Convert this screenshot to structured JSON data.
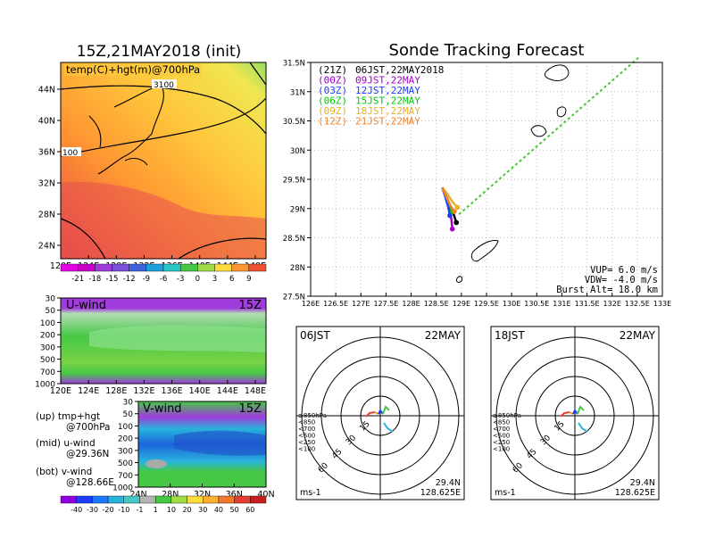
{
  "left": {
    "title": "15Z,21MAY2018 (init)",
    "map_label": "temp(C)+hgt(m)@700hPa",
    "contour_labels": [
      "3100",
      "100"
    ],
    "lat_ticks": [
      "44N",
      "40N",
      "36N",
      "32N",
      "28N",
      "24N"
    ],
    "lon_ticks": [
      "120E",
      "124E",
      "128E",
      "132E",
      "136E",
      "140E",
      "144E",
      "148E"
    ],
    "temp_colorbar": [
      "-21",
      "-18",
      "-15",
      "-12",
      "-9",
      "-6",
      "-3",
      "0",
      "3",
      "6",
      "9"
    ],
    "u_panel": {
      "label": "U-wind",
      "time": "15Z",
      "p_ticks": [
        "30",
        "50",
        "100",
        "200",
        "300",
        "500",
        "700",
        "1000"
      ],
      "x_ticks": [
        "120E",
        "124E",
        "128E",
        "132E",
        "136E",
        "140E",
        "144E",
        "148E"
      ]
    },
    "v_panel": {
      "label": "V-wind",
      "time": "15Z",
      "p_ticks": [
        "30",
        "50",
        "100",
        "200",
        "300",
        "500",
        "700",
        "1000"
      ],
      "x_ticks": [
        "24N",
        "28N",
        "32N",
        "36N",
        "40N"
      ]
    },
    "notes": [
      {
        "a": "(up) tmp+hgt",
        "b": "@700hPa"
      },
      {
        "a": "(mid) u-wind",
        "b": "@29.36N"
      },
      {
        "a": "(bot) v-wind",
        "b": "@128.66E"
      }
    ],
    "wind_colorbar": [
      "-40",
      "-30",
      "-20",
      "-10",
      "-1",
      "1",
      "10",
      "20",
      "30",
      "40",
      "50",
      "60"
    ]
  },
  "right": {
    "title": "Sonde Tracking Forecast",
    "legend": [
      {
        "tag": "(21Z)",
        "text": "06JST,22MAY2018",
        "color": "#000000"
      },
      {
        "tag": "(00Z)",
        "text": "09JST,22MAY",
        "color": "#a000c8"
      },
      {
        "tag": "(03Z)",
        "text": "12JST,22MAY",
        "color": "#1e3cff"
      },
      {
        "tag": "(06Z)",
        "text": "15JST,22MAY",
        "color": "#00c800"
      },
      {
        "tag": "(09Z)",
        "text": "18JST,22MAY",
        "color": "#e6af2d"
      },
      {
        "tag": "(12Z)",
        "text": "21JST,22MAY",
        "color": "#f08228"
      }
    ],
    "lat_ticks": [
      "31.5N",
      "31N",
      "30.5N",
      "30N",
      "29.5N",
      "29N",
      "28.5N",
      "28N",
      "27.5N"
    ],
    "lon_ticks": [
      "126E",
      "126.5E",
      "127E",
      "127.5E",
      "128E",
      "128.5E",
      "129E",
      "129.5E",
      "130E",
      "130.5E",
      "131E",
      "131.5E",
      "132E",
      "132.5E",
      "133E"
    ],
    "vup": "VUP=  6.0 m/s",
    "vdw": "VDW= -4.0 m/s",
    "burst": "Burst Alt= 18.0 km"
  },
  "hodographs": [
    {
      "time": "06JST",
      "date": "22MAY",
      "lat": "29.4N",
      "lon": "128.625E",
      "unit": "ms-1",
      "rings": [
        "15",
        "30",
        "45",
        "60"
      ],
      "levels": [
        "≥850hPa",
        "<850",
        "<700",
        "<500",
        "<250",
        "<100"
      ]
    },
    {
      "time": "18JST",
      "date": "22MAY",
      "lat": "29.4N",
      "lon": "128.625E",
      "unit": "ms-1",
      "rings": [
        "15",
        "30",
        "45",
        "60"
      ],
      "levels": [
        "≥850hPa",
        "<850",
        "<700",
        "<500",
        "<250",
        "<100"
      ]
    }
  ],
  "chart_data": [
    {
      "type": "line",
      "title": "Sonde Tracking Forecast",
      "xlim": [
        126,
        133
      ],
      "ylim": [
        27.5,
        31.5
      ],
      "series": [
        {
          "name": "(21Z) 06JST,22MAY2018",
          "color": "#000000",
          "x": [
            128.62,
            128.7,
            128.78,
            128.84,
            128.9
          ],
          "y": [
            29.36,
            29.2,
            29.05,
            28.92,
            28.76
          ]
        },
        {
          "name": "(00Z) 09JST,22MAY",
          "color": "#a000c8",
          "x": [
            128.62,
            128.69,
            128.75,
            128.8,
            128.82
          ],
          "y": [
            29.36,
            29.18,
            29.0,
            28.82,
            28.65
          ]
        },
        {
          "name": "(03Z) 12JST,22MAY",
          "color": "#1e3cff",
          "x": [
            128.62,
            128.68,
            128.74,
            128.77
          ],
          "y": [
            29.36,
            29.2,
            29.02,
            28.88
          ]
        },
        {
          "name": "(06Z) 15JST,22MAY",
          "color": "#00c800",
          "x": [
            128.62,
            128.69,
            128.76,
            128.82
          ],
          "y": [
            29.36,
            29.22,
            29.08,
            28.95
          ]
        },
        {
          "name": "(09Z) 18JST,22MAY",
          "color": "#e6af2d",
          "x": [
            128.62,
            128.72,
            128.82,
            128.92
          ],
          "y": [
            29.36,
            29.25,
            29.12,
            29.02
          ]
        },
        {
          "name": "(12Z) 21JST,22MAY",
          "color": "#f08228",
          "x": [
            128.62,
            128.7,
            128.78,
            128.86
          ],
          "y": [
            29.36,
            29.2,
            29.05,
            28.95
          ]
        }
      ],
      "forecast_direction": {
        "x": [
          128.95,
          132.55
        ],
        "y": [
          28.9,
          31.6
        ]
      }
    }
  ]
}
